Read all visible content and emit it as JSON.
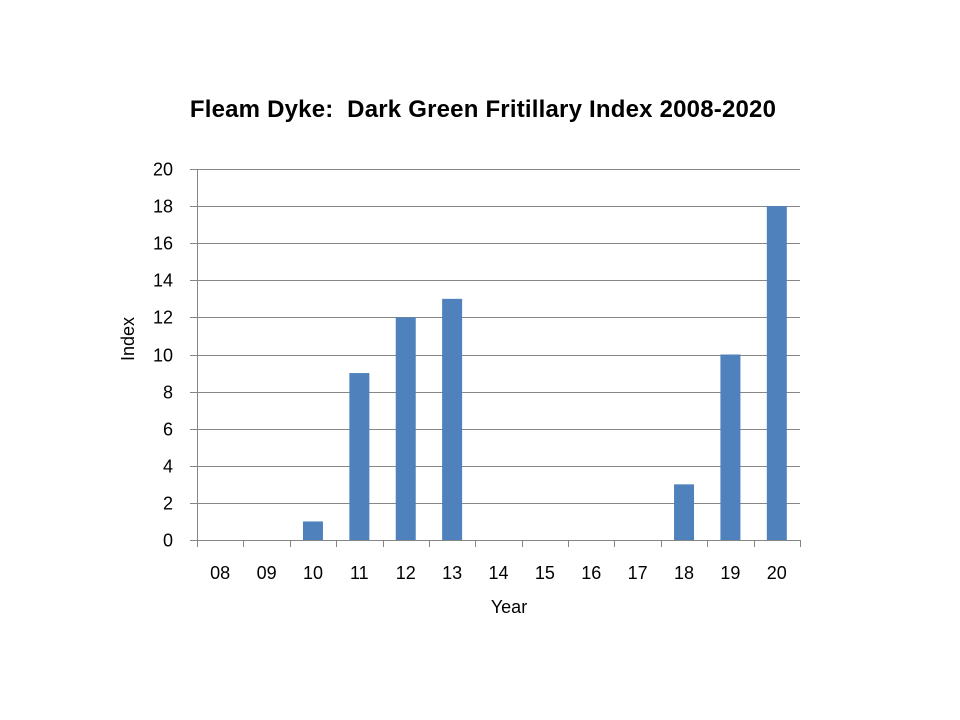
{
  "chart_data": {
    "type": "bar",
    "title": "Fleam Dyke:  Dark Green Fritillary Index 2008-2020",
    "xlabel": "Year",
    "ylabel": "Index",
    "categories": [
      "08",
      "09",
      "10",
      "11",
      "12",
      "13",
      "14",
      "15",
      "16",
      "17",
      "18",
      "19",
      "20"
    ],
    "values": [
      0,
      0,
      1,
      9,
      12,
      13,
      0,
      0,
      0,
      0,
      3,
      10,
      18
    ],
    "ylim": [
      0,
      20
    ],
    "yticks": [
      0,
      2,
      4,
      6,
      8,
      10,
      12,
      14,
      16,
      18,
      20
    ],
    "grid": true,
    "legend": "none",
    "colors": {
      "bar": "#4F81BD",
      "gridline": "#868686",
      "axis": "#868686"
    }
  }
}
